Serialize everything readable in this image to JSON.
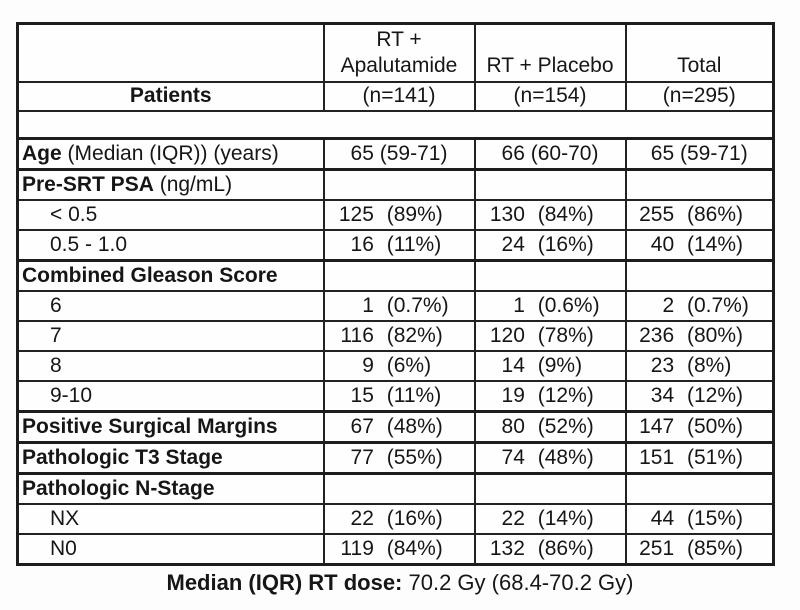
{
  "accent_colors": {
    "border": "#1d1d1d",
    "text": "#161616",
    "background": "#fdfdfd"
  },
  "header": {
    "col1_label": "Patients",
    "col2_title_line1": "RT +",
    "col2_title_line2": "Apalutamide",
    "col3_title": "RT + Placebo",
    "col4_title": "Total",
    "col2_n": "(n=141)",
    "col3_n": "(n=154)",
    "col4_n": "(n=295)"
  },
  "rows": [
    {
      "bold": "Age",
      "rest": " (Median (IQR)) (years)",
      "sep": true,
      "cells": [
        {
          "t": "65 (59-71)"
        },
        {
          "t": "66 (60-70)"
        },
        {
          "t": "65 (59-71)"
        }
      ]
    },
    {
      "bold": "Pre-SRT PSA",
      "rest": " (ng/mL)",
      "sep": true,
      "cells": [
        {},
        {},
        {}
      ]
    },
    {
      "plain": "< 0.5",
      "indent": true,
      "cells": [
        {
          "n": "125",
          "p": "(89%)"
        },
        {
          "n": "130",
          "p": "(84%)"
        },
        {
          "n": "255",
          "p": "(86%)"
        }
      ]
    },
    {
      "plain": "0.5 - 1.0",
      "indent": true,
      "cells": [
        {
          "n": "16",
          "p": "(11%)"
        },
        {
          "n": "24",
          "p": "(16%)"
        },
        {
          "n": "40",
          "p": "(14%)"
        }
      ]
    },
    {
      "bold": "Combined Gleason Score",
      "sep": true,
      "cells": [
        {},
        {},
        {}
      ]
    },
    {
      "plain": "6",
      "indent": true,
      "cells": [
        {
          "n": "1",
          "p": "(0.7%)"
        },
        {
          "n": "1",
          "p": "(0.6%)"
        },
        {
          "n": "2",
          "p": "(0.7%)"
        }
      ]
    },
    {
      "plain": "7",
      "indent": true,
      "cells": [
        {
          "n": "116",
          "p": "(82%)"
        },
        {
          "n": "120",
          "p": "(78%)"
        },
        {
          "n": "236",
          "p": "(80%)"
        }
      ]
    },
    {
      "plain": "8",
      "indent": true,
      "cells": [
        {
          "n": "9",
          "p": "(6%)"
        },
        {
          "n": "14",
          "p": "(9%)"
        },
        {
          "n": "23",
          "p": "(8%)"
        }
      ]
    },
    {
      "plain": "9-10",
      "indent": true,
      "cells": [
        {
          "n": "15",
          "p": "(11%)"
        },
        {
          "n": "19",
          "p": "(12%)"
        },
        {
          "n": "34",
          "p": "(12%)"
        }
      ]
    },
    {
      "bold": "Positive Surgical Margins",
      "sep": true,
      "cells": [
        {
          "n": "67",
          "p": "(48%)"
        },
        {
          "n": "80",
          "p": "(52%)"
        },
        {
          "n": "147",
          "p": "(50%)"
        }
      ]
    },
    {
      "bold": "Pathologic T3 Stage",
      "sep": true,
      "cells": [
        {
          "n": "77",
          "p": "(55%)"
        },
        {
          "n": "74",
          "p": "(48%)"
        },
        {
          "n": "151",
          "p": "(51%)"
        }
      ]
    },
    {
      "bold": "Pathologic N-Stage",
      "sep": true,
      "cells": [
        {},
        {},
        {}
      ]
    },
    {
      "plain": "NX",
      "indent": true,
      "cells": [
        {
          "n": "22",
          "p": "(16%)"
        },
        {
          "n": "22",
          "p": "(14%)"
        },
        {
          "n": "44",
          "p": "(15%)"
        }
      ]
    },
    {
      "plain": "N0",
      "indent": true,
      "cells": [
        {
          "n": "119",
          "p": "(84%)"
        },
        {
          "n": "132",
          "p": "(86%)"
        },
        {
          "n": "251",
          "p": "(85%)"
        }
      ]
    }
  ],
  "footer": {
    "label": "Median (IQR) RT dose:",
    "value": " 70.2 Gy (68.4-70.2 Gy)"
  }
}
